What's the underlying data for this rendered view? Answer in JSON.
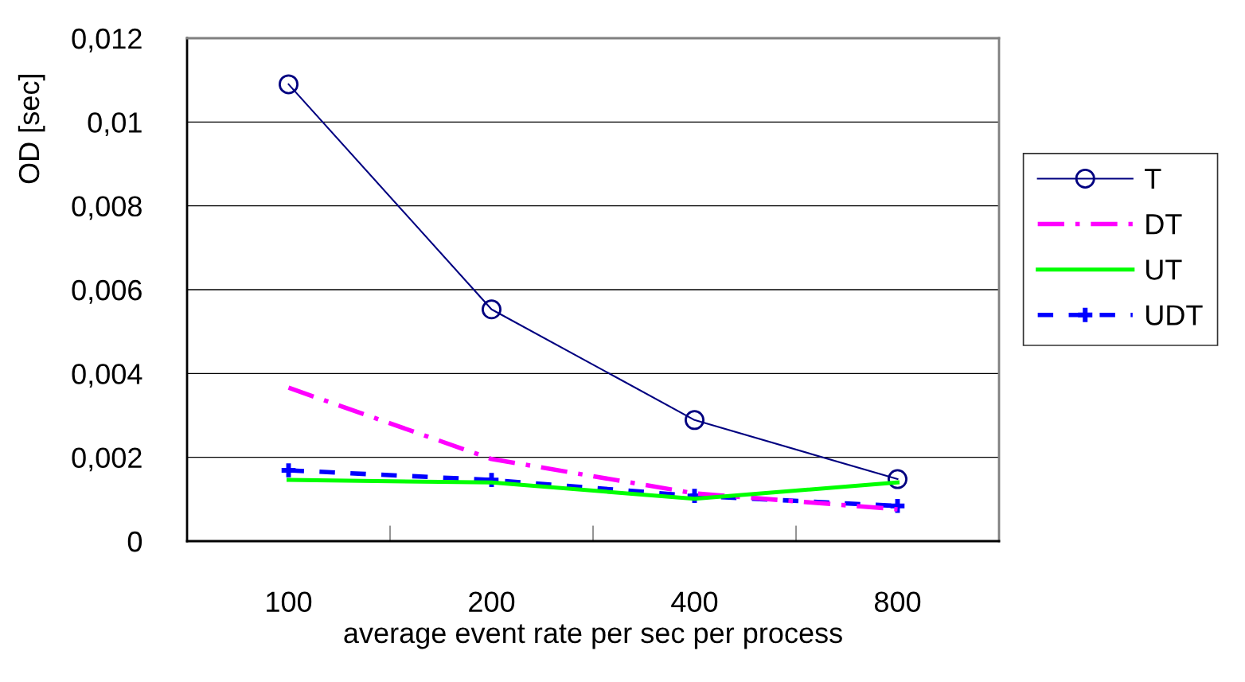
{
  "chart_data": {
    "type": "line",
    "xlabel": "average event rate per sec per process",
    "ylabel": "OD [sec]",
    "categories": [
      "100",
      "200",
      "400",
      "800"
    ],
    "series": [
      {
        "name": "T",
        "color": "#000080",
        "values": [
          0.0109,
          0.00553,
          0.00289,
          0.00148
        ],
        "marker": "circle",
        "line_style": "solid"
      },
      {
        "name": "DT",
        "color": "#ff00ff",
        "values": [
          0.00366,
          0.00196,
          0.00114,
          0.00076
        ],
        "marker": "none",
        "line_style": "dashed"
      },
      {
        "name": "UT",
        "color": "#00ff00",
        "values": [
          0.00146,
          0.0014,
          0.00101,
          0.0014
        ],
        "marker": "none",
        "line_style": "solid"
      },
      {
        "name": "UDT",
        "color": "#0000ff",
        "values": [
          0.00169,
          0.00146,
          0.00108,
          0.00084
        ],
        "marker": "cross",
        "line_style": "dotted"
      }
    ],
    "ylim": [
      0,
      0.012
    ],
    "yticks": [
      {
        "value": 0,
        "label": "0"
      },
      {
        "value": 0.002,
        "label": "0,002"
      },
      {
        "value": 0.004,
        "label": "0,004"
      },
      {
        "value": 0.006,
        "label": "0,006"
      },
      {
        "value": 0.008,
        "label": "0,008"
      },
      {
        "value": 0.01,
        "label": "0,01"
      },
      {
        "value": 0.012,
        "label": "0,012"
      }
    ],
    "grid": "y",
    "legend": "right"
  }
}
